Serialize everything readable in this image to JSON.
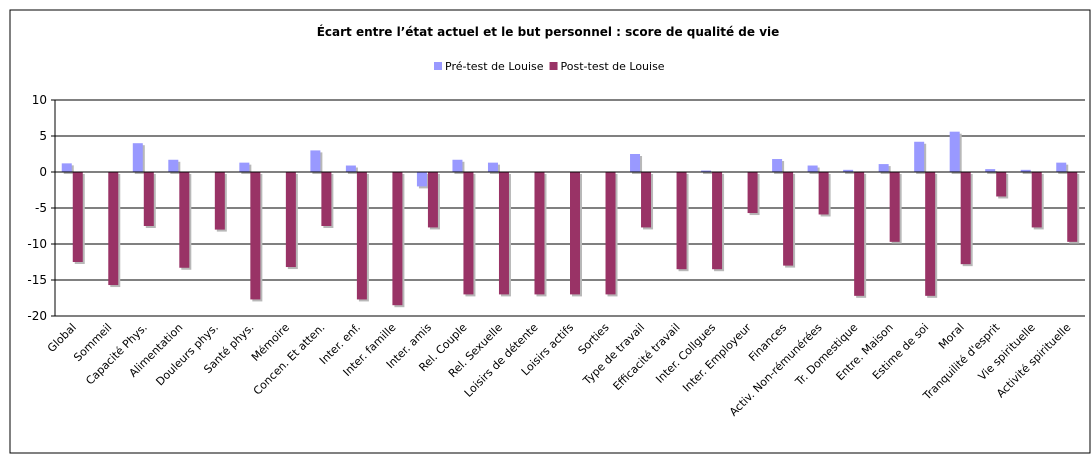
{
  "chart_data": {
    "type": "bar",
    "title": "Écart entre l’état actuel et le but personnel : score de qualité de vie",
    "categories": [
      "Global",
      "Sommeil",
      "Capacité Phys.",
      "Alimentation",
      "Douleurs phys.",
      "Santé phys.",
      "Mémoire",
      "Concen. Et atten.",
      "Inter.  enf.",
      "Inter. famille",
      "Inter. amis",
      "Rel. Couple",
      "Rel. Sexuelle",
      "Loisirs de détente",
      "Loisirs actifs",
      "Sorties",
      "Type de travail",
      "Efficacité travail",
      "Inter. Collgues",
      "Inter. Employeur",
      "Finances",
      "Activ. Non-rémunérées",
      "Tr. Domestique",
      "Entre. Maison",
      "Estime de soi",
      "Moral",
      "Tranquilité d'esprit",
      "Vie spirituelle",
      "Activité spirituelle"
    ],
    "series": [
      {
        "name": "Pré-test de Louise",
        "color": "#9999ff",
        "values": [
          1.2,
          0,
          4,
          1.7,
          0,
          1.3,
          0,
          3,
          0.9,
          0,
          -2,
          1.7,
          1.3,
          0,
          0,
          0,
          2.5,
          0,
          0.2,
          0,
          1.8,
          0.9,
          0.3,
          1.1,
          4.2,
          5.6,
          0.4,
          0.3,
          1.3
        ]
      },
      {
        "name": "Post-test de Louise",
        "color": "#993366",
        "values": [
          -12.5,
          -15.7,
          -7.5,
          -13.3,
          -8,
          -17.7,
          -13.2,
          -7.5,
          -17.7,
          -18.5,
          -7.7,
          -17,
          -17,
          -17,
          -17,
          -17,
          -7.7,
          -13.5,
          -13.5,
          -5.7,
          -13,
          -5.9,
          -17.2,
          -9.7,
          -17.2,
          -12.8,
          -3.4,
          -7.7,
          -9.7
        ]
      }
    ],
    "ylim": [
      -20,
      10
    ],
    "yticks": [
      -20,
      -15,
      -10,
      -5,
      0,
      5,
      10
    ],
    "grid": true,
    "legend": "top"
  }
}
